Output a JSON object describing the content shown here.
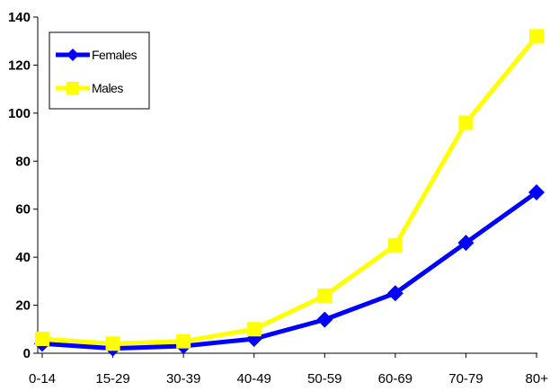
{
  "chart_data": {
    "type": "line",
    "title": "",
    "xlabel": "",
    "ylabel": "",
    "categories": [
      "0-14",
      "15-29",
      "30-39",
      "40-49",
      "50-59",
      "60-69",
      "70-79",
      "80+"
    ],
    "ylim": [
      0,
      140
    ],
    "yticks": [
      0,
      20,
      40,
      60,
      80,
      100,
      120,
      140
    ],
    "grid": false,
    "legend_position": "top-left",
    "series": [
      {
        "name": "Females",
        "color": "#0000ff",
        "marker": "diamond",
        "values": [
          4,
          2,
          3,
          6,
          14,
          25,
          46,
          67
        ]
      },
      {
        "name": "Males",
        "color": "#ffff00",
        "marker": "square",
        "values": [
          6,
          4,
          5,
          10,
          24,
          45,
          96,
          132
        ]
      }
    ]
  }
}
